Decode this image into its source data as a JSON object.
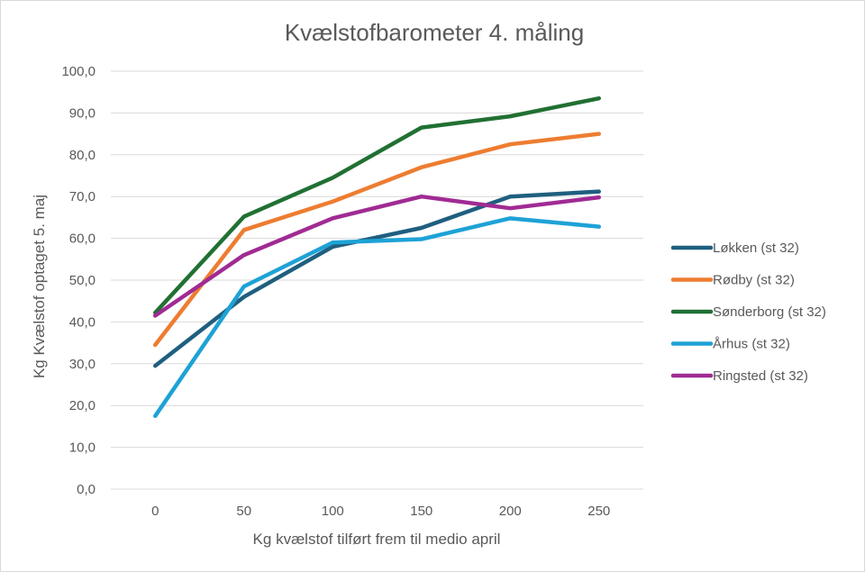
{
  "chart_data": {
    "type": "line",
    "title": "Kvælstofbarometer 4. måling",
    "xlabel": "Kg kvælstof tilført frem til medio april",
    "ylabel": "Kg Kvælstof optaget 5. maj",
    "x": [
      0,
      50,
      100,
      150,
      200,
      250
    ],
    "x_tick_labels": [
      "0",
      "50",
      "100",
      "150",
      "200",
      "250"
    ],
    "ylim": [
      0,
      100
    ],
    "y_tick_labels": [
      "0,0",
      "10,0",
      "20,0",
      "30,0",
      "40,0",
      "50,0",
      "60,0",
      "70,0",
      "80,0",
      "90,0",
      "100,0"
    ],
    "grid": true,
    "legend_position": "right",
    "series": [
      {
        "name": "Løkken (st 32)",
        "color": "#1f5f7f",
        "values": [
          29.5,
          46.0,
          58.0,
          62.5,
          70.0,
          71.2
        ]
      },
      {
        "name": "Rødby (st 32)",
        "color": "#ed7d31",
        "values": [
          34.5,
          62.0,
          68.8,
          77.0,
          82.5,
          85.0
        ]
      },
      {
        "name": "Sønderborg (st 32)",
        "color": "#217033",
        "values": [
          42.2,
          65.2,
          74.5,
          86.5,
          89.2,
          93.5
        ]
      },
      {
        "name": "Århus (st 32)",
        "color": "#1ea2d6",
        "values": [
          17.5,
          48.5,
          59.0,
          59.8,
          64.8,
          62.8
        ]
      },
      {
        "name": "Ringsted (st 32)",
        "color": "#a02b93",
        "values": [
          41.5,
          56.0,
          64.8,
          70.0,
          67.2,
          69.8
        ]
      }
    ]
  }
}
